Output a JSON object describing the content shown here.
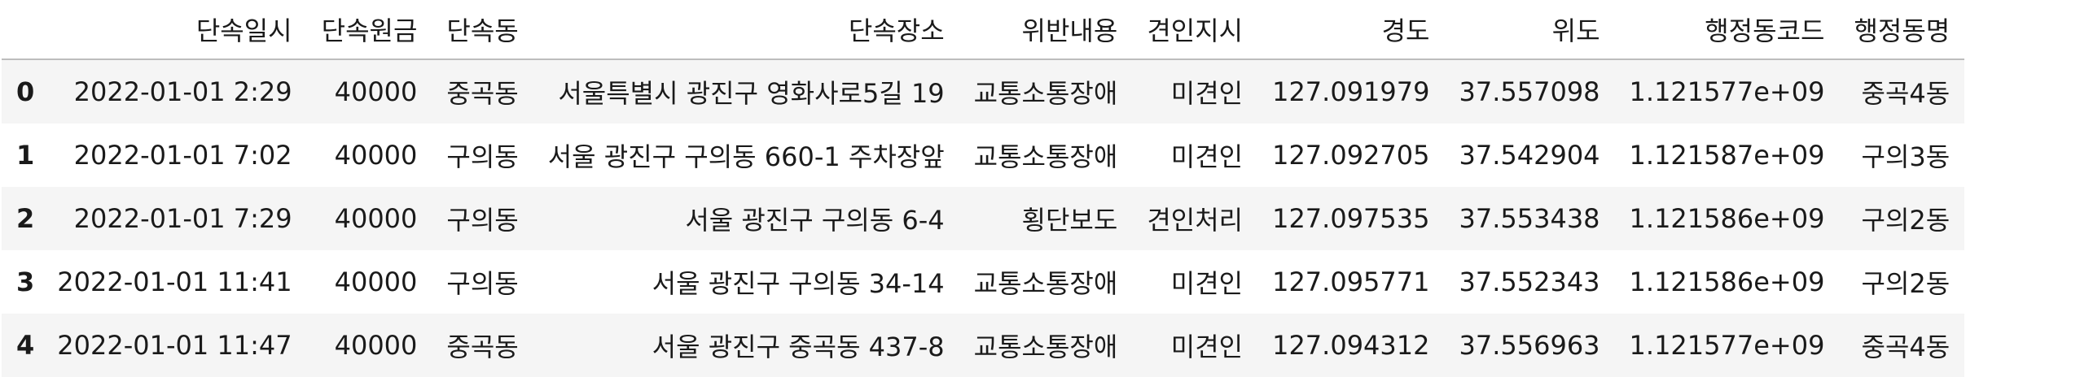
{
  "table": {
    "columns": [
      "",
      "단속일시",
      "단속원금",
      "단속동",
      "단속장소",
      "위반내용",
      "견인지시",
      "경도",
      "위도",
      "행정동코드",
      "행정동명"
    ],
    "rows": [
      {
        "index": "0",
        "datetime": "2022-01-01 2:29",
        "amount": "40000",
        "dong": "중곡동",
        "place": "서울특별시 광진구 영화사로5길 19",
        "violation": "교통소통장애",
        "tow": "미견인",
        "lon": "127.091979",
        "lat": "37.557098",
        "code": "1.121577e+09",
        "admin_dong": "중곡4동"
      },
      {
        "index": "1",
        "datetime": "2022-01-01 7:02",
        "amount": "40000",
        "dong": "구의동",
        "place": "서울 광진구 구의동 660-1 주차장앞",
        "violation": "교통소통장애",
        "tow": "미견인",
        "lon": "127.092705",
        "lat": "37.542904",
        "code": "1.121587e+09",
        "admin_dong": "구의3동"
      },
      {
        "index": "2",
        "datetime": "2022-01-01 7:29",
        "amount": "40000",
        "dong": "구의동",
        "place": "서울 광진구 구의동 6-4",
        "violation": "횡단보도",
        "tow": "견인처리",
        "lon": "127.097535",
        "lat": "37.553438",
        "code": "1.121586e+09",
        "admin_dong": "구의2동"
      },
      {
        "index": "3",
        "datetime": "2022-01-01 11:41",
        "amount": "40000",
        "dong": "구의동",
        "place": "서울 광진구 구의동 34-14",
        "violation": "교통소통장애",
        "tow": "미견인",
        "lon": "127.095771",
        "lat": "37.552343",
        "code": "1.121586e+09",
        "admin_dong": "구의2동"
      },
      {
        "index": "4",
        "datetime": "2022-01-01 11:47",
        "amount": "40000",
        "dong": "중곡동",
        "place": "서울 광진구 중곡동 437-8",
        "violation": "교통소통장애",
        "tow": "미견인",
        "lon": "127.094312",
        "lat": "37.556963",
        "code": "1.121577e+09",
        "admin_dong": "중곡4동"
      }
    ]
  }
}
